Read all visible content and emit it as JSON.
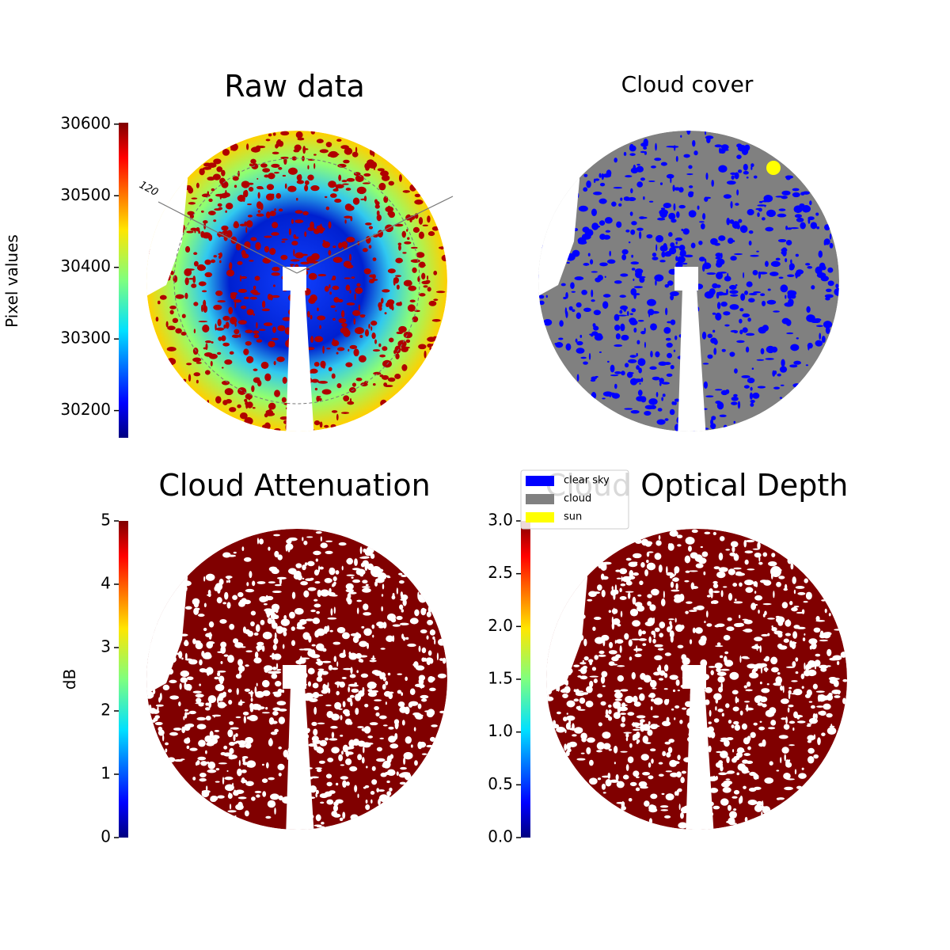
{
  "chart_data": [
    {
      "type": "image",
      "title": "Raw data",
      "ylabel": "Pixel values",
      "colormap": "jet",
      "ylim": [
        30162,
        30602
      ],
      "yticks": [
        30200,
        30300,
        30400,
        30500,
        30600
      ],
      "annotation": "120"
    },
    {
      "type": "image",
      "title": "Cloud cover",
      "series": [
        {
          "name": "clear sky",
          "color": "#0000ff"
        },
        {
          "name": "cloud",
          "color": "#808080"
        },
        {
          "name": "sun",
          "color": "#ffff00"
        }
      ]
    },
    {
      "type": "image",
      "title": "Cloud Attenuation",
      "ylabel": "dB",
      "colormap": "jet",
      "ylim": [
        0,
        5
      ],
      "yticks": [
        0,
        1,
        2,
        3,
        4,
        5
      ]
    },
    {
      "type": "image",
      "title": "Cloud Optical Depth",
      "colormap": "jet",
      "ylim": [
        0,
        3
      ],
      "yticks": [
        {
          "value": 0,
          "label": "0.0"
        },
        0.5,
        {
          "value": 1,
          "label": "1.0"
        },
        1.5,
        {
          "value": 2,
          "label": "2.0"
        },
        2.5,
        {
          "value": 3,
          "label": "3.0"
        }
      ]
    }
  ]
}
